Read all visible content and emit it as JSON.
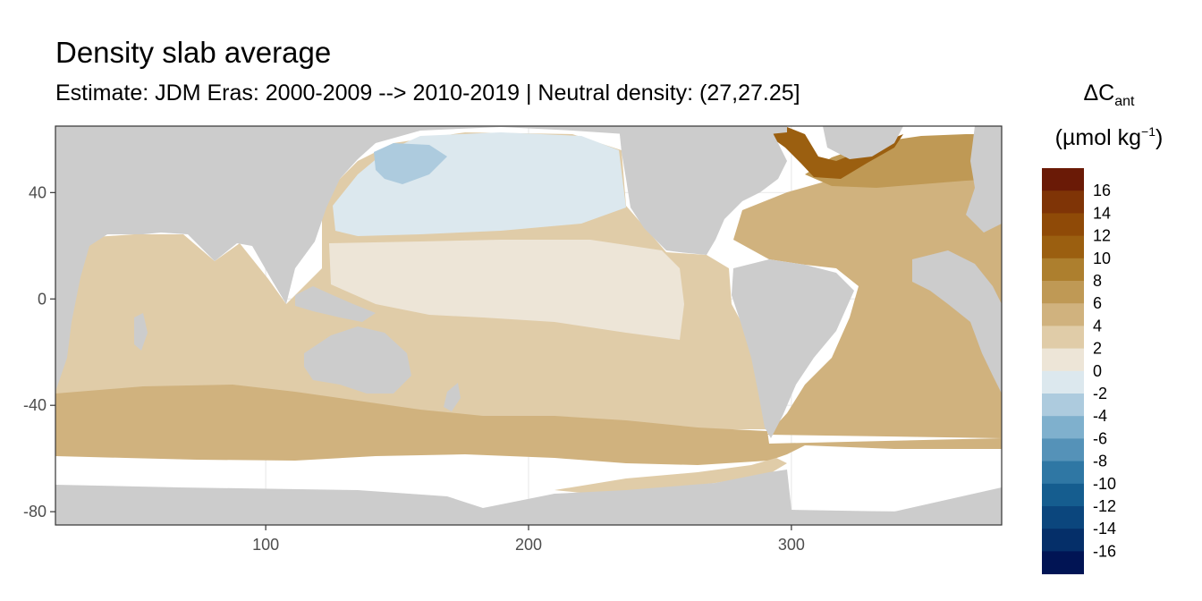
{
  "title": "Density slab average",
  "subtitle": "Estimate: JDM Eras: 2000-2009 --> 2010-2019 | Neutral density: (27,27.25]",
  "legend": {
    "title_prefix": "ΔC",
    "title_subscript": "ant",
    "unit_prefix": "(µmol kg",
    "unit_superscript": "−1",
    "unit_suffix": ")",
    "colors": [
      "#6a1a06",
      "#7f3406",
      "#8f4a07",
      "#9b5f10",
      "#ad7f2e",
      "#bf9955",
      "#d0b27e",
      "#e0cca8",
      "#ede5d7",
      "#dce8ee",
      "#adcbde",
      "#7fb0cd",
      "#5592b8",
      "#2f77a4",
      "#155d8f",
      "#0b467d",
      "#052f69",
      "#011454"
    ],
    "tick_labels": [
      "16",
      "14",
      "12",
      "10",
      "8",
      "6",
      "4",
      "2",
      "0",
      "-2",
      "-4",
      "-6",
      "-8",
      "-10",
      "-12",
      "-14",
      "-16"
    ]
  },
  "chart_data": {
    "type": "heatmap",
    "title": "Density slab average",
    "subtitle": "Estimate: JDM Eras: 2000-2009 --> 2010-2019 | Neutral density: (27,27.25]",
    "xlabel": "",
    "ylabel": "",
    "xlim": [
      20,
      380
    ],
    "ylim": [
      -85,
      65
    ],
    "x_ticks": [
      100,
      200,
      300
    ],
    "x_tick_labels": [
      "100",
      "200",
      "300"
    ],
    "y_ticks": [
      40,
      0,
      -40,
      -80
    ],
    "y_tick_labels": [
      "40",
      "0",
      "-40",
      "-80"
    ],
    "grid": true,
    "legend_position": "right",
    "land_color": "#cccccc",
    "no_data_color": "#ffffff",
    "regions": [
      {
        "name": "North Pacific subpolar",
        "bin": "0 to -2",
        "color": "#dce8ee"
      },
      {
        "name": "Kuril-Kamchatka patch",
        "bin": "-2 to -4",
        "color": "#adcbde"
      },
      {
        "name": "Tropical Pacific",
        "bin": "0 to 2",
        "color": "#ede5d7"
      },
      {
        "name": "Indian and South Pacific",
        "bin": "2 to 4",
        "color": "#e0cca8"
      },
      {
        "name": "Southern Ocean belt",
        "bin": "4 to 6",
        "color": "#d0b27e"
      },
      {
        "name": "Atlantic",
        "bin": "4 to 6",
        "color": "#d0b27e"
      },
      {
        "name": "North Atlantic subpolar",
        "bin": "6 to 8",
        "color": "#bf9955"
      },
      {
        "name": "Labrador and Irminger Seas",
        "bin": "10 to 14",
        "color": "#9b5f10"
      }
    ]
  }
}
